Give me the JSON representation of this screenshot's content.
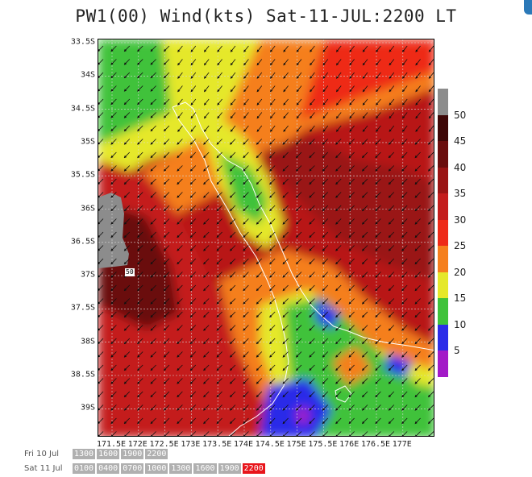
{
  "title": "PW1(00) Wind(kts) Sat-11-JUL:2200 LT",
  "map": {
    "lat_labels": [
      "33.5S",
      "34S",
      "34.5S",
      "35S",
      "35.5S",
      "36S",
      "36.5S",
      "37S",
      "37.5S",
      "38S",
      "38.5S",
      "39S"
    ],
    "lon_labels": [
      "171.5E",
      "172E",
      "172.5E",
      "173E",
      "173.5E",
      "174E",
      "174.5E",
      "175E",
      "175.5E",
      "176E",
      "176.5E",
      "177E"
    ],
    "point_label": "50"
  },
  "colorbar": {
    "labels": [
      "50",
      "45",
      "40",
      "35",
      "30",
      "25",
      "20",
      "15",
      "10",
      "5"
    ],
    "colors": {
      "gt50": "#8c8c8c",
      "45-50": "#3d0606",
      "40-45": "#6a0d0d",
      "35-40": "#9a1414",
      "30-35": "#c41c1c",
      "25-30": "#ee2a18",
      "20-25": "#f57f1d",
      "15-20": "#e5e82a",
      "10-15": "#3fc23a",
      "5-10": "#2c2ce8",
      "0-5": "#a31ac7"
    }
  },
  "timeline": {
    "days": [
      {
        "label": "Fri 10 Jul",
        "times": [
          "1300",
          "1600",
          "1900",
          "2200"
        ]
      },
      {
        "label": "Sat 11 Jul",
        "times": [
          "0100",
          "0400",
          "0700",
          "1000",
          "1300",
          "1600",
          "1900",
          "2200"
        ]
      }
    ],
    "selected": "2200"
  }
}
